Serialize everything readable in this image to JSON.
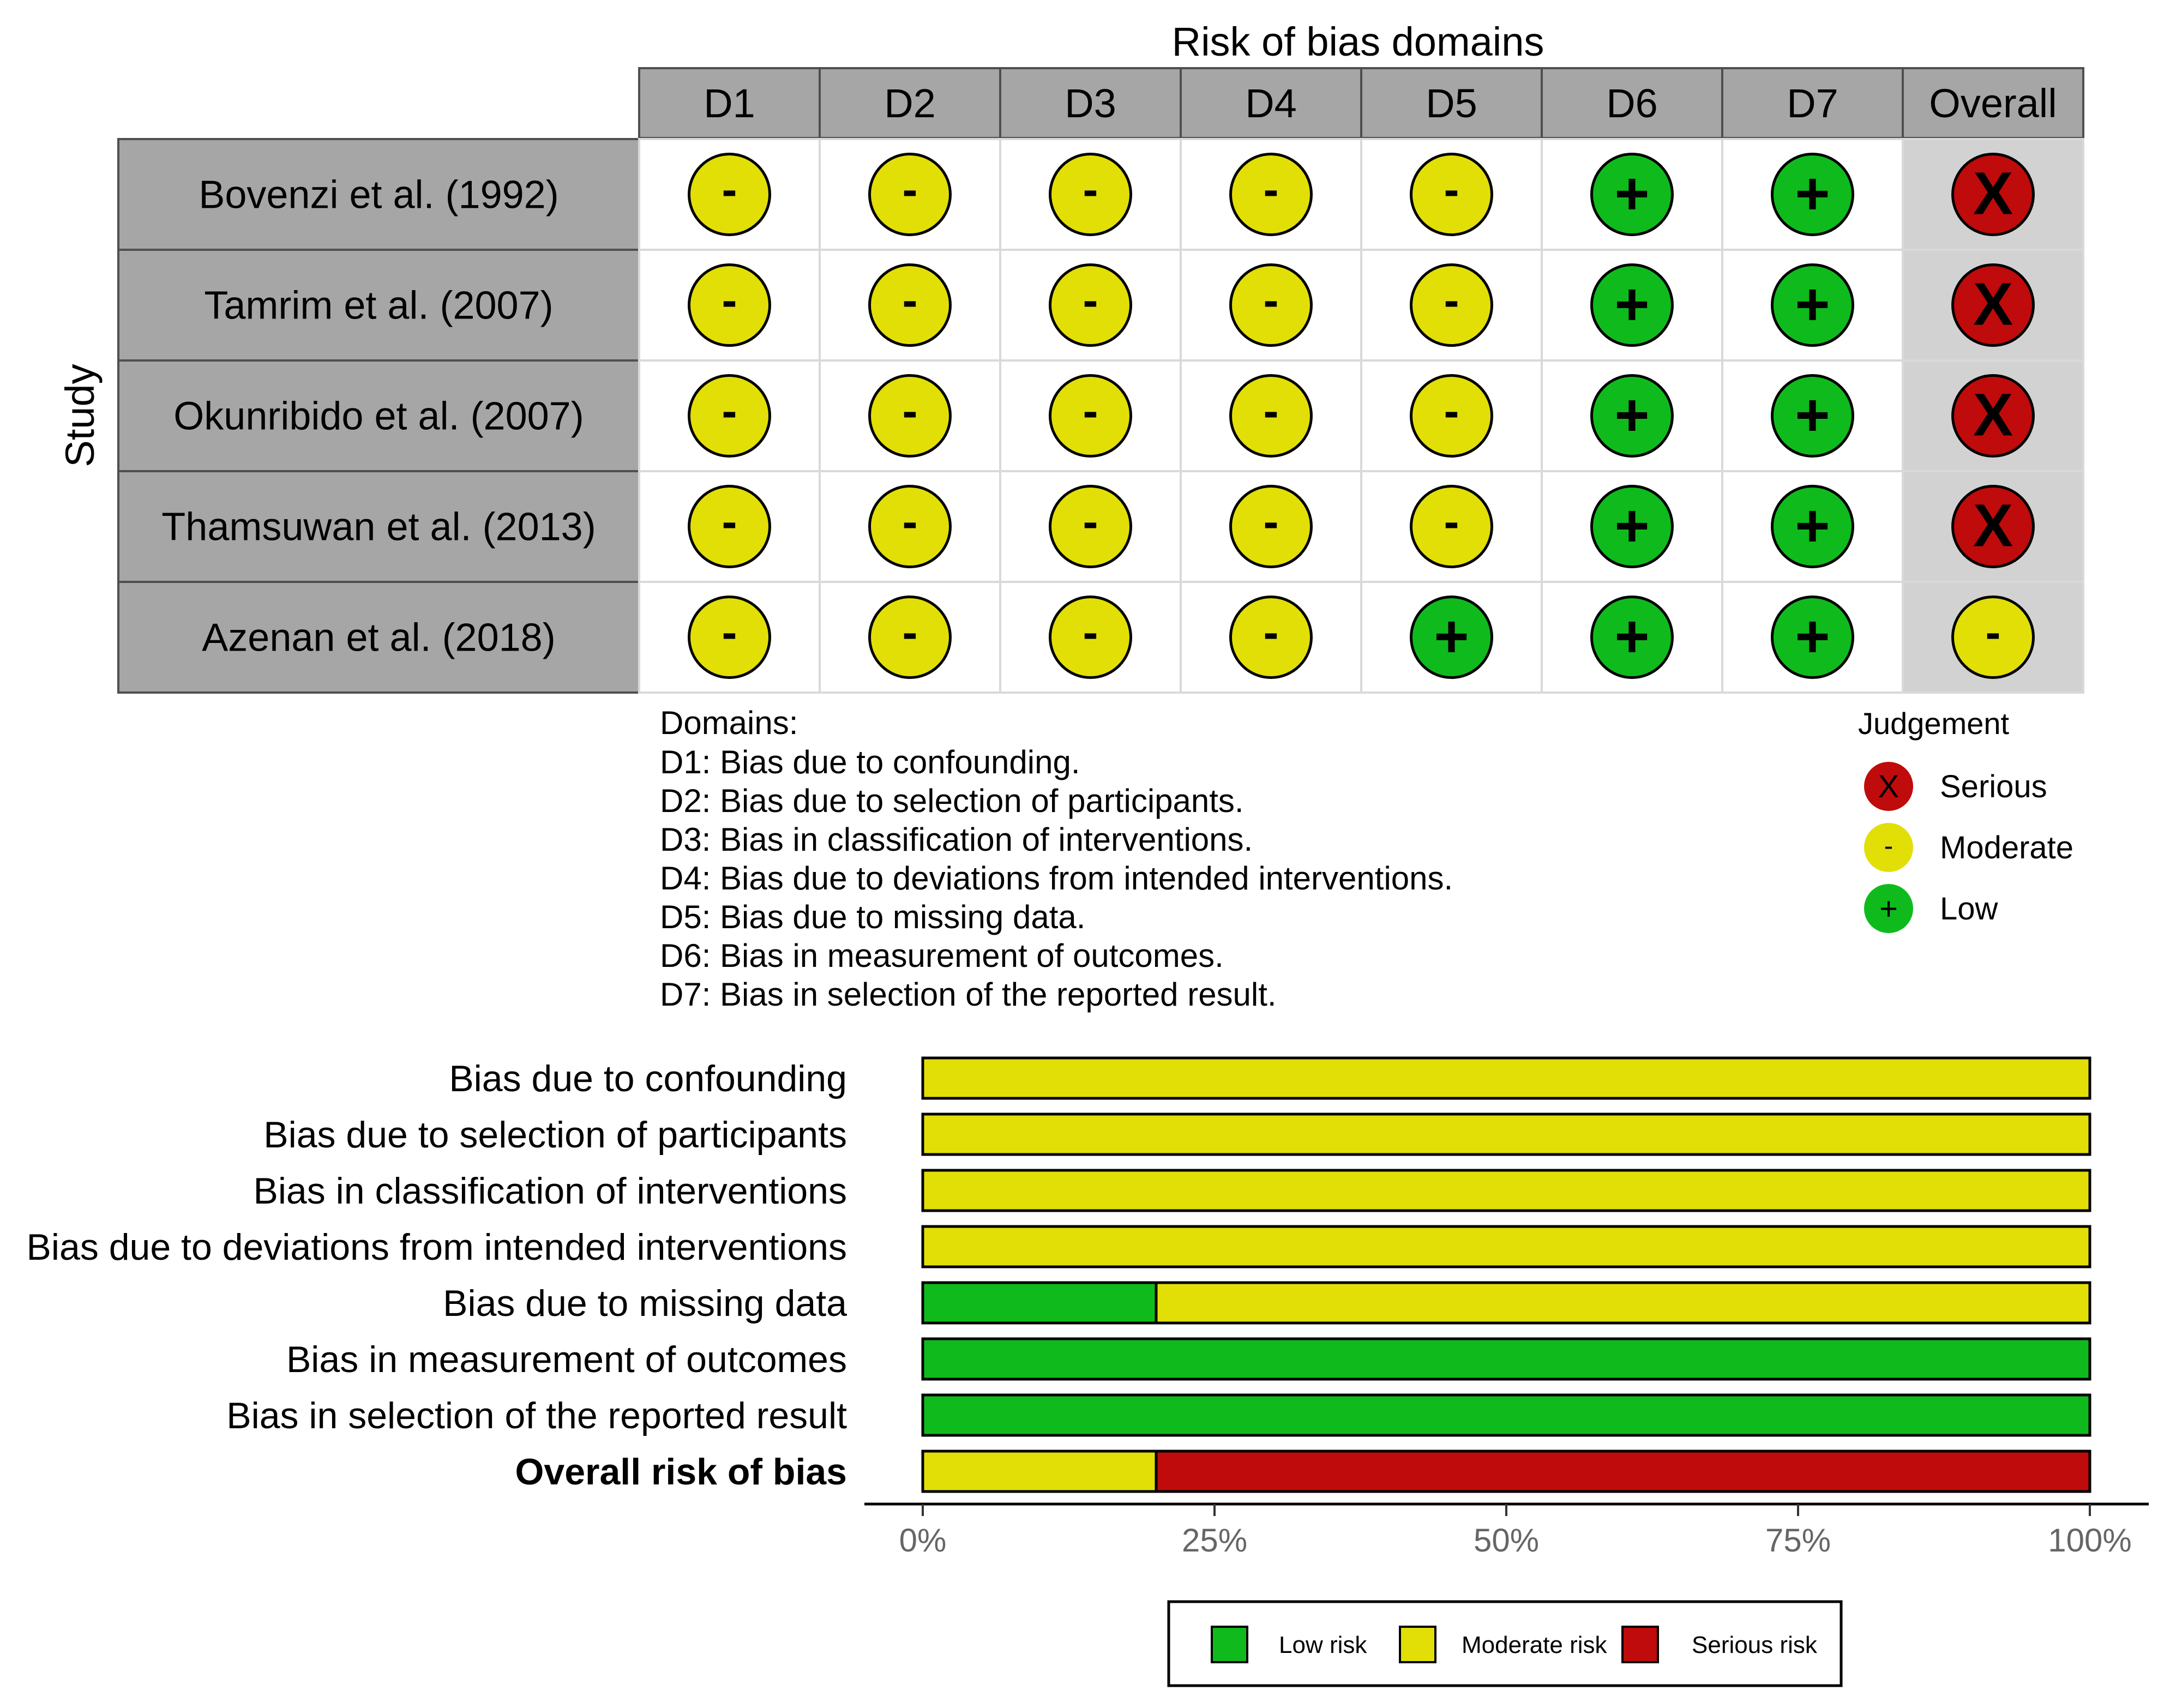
{
  "colors": {
    "low": "#0fbb1c",
    "moderate": "#e2df07",
    "serious": "#bf0b0b",
    "header_fill": "#a6a6a6",
    "study_fill": "#a6a6a6",
    "overall_fill": "#d2d2d2",
    "cell_fill": "#ffffff",
    "grid_line": "#d9d9d9",
    "border": "#4f4f4f",
    "text": "#000000",
    "tick_text": "#666666"
  },
  "chart_data": [
    {
      "type": "table",
      "title": "Risk of bias domains",
      "ylabel": "Study",
      "columns": [
        "D1",
        "D2",
        "D3",
        "D4",
        "D5",
        "D6",
        "D7",
        "Overall"
      ],
      "rows": [
        {
          "study": "Bovenzi et al. (1992)",
          "judgements": [
            "-",
            "-",
            "-",
            "-",
            "-",
            "+",
            "+",
            "X"
          ]
        },
        {
          "study": "Tamrim et al. (2007)",
          "judgements": [
            "-",
            "-",
            "-",
            "-",
            "-",
            "+",
            "+",
            "X"
          ]
        },
        {
          "study": "Okunribido et al. (2007)",
          "judgements": [
            "-",
            "-",
            "-",
            "-",
            "-",
            "+",
            "+",
            "X"
          ]
        },
        {
          "study": "Thamsuwan et al. (2013)",
          "judgements": [
            "-",
            "-",
            "-",
            "-",
            "-",
            "+",
            "+",
            "X"
          ]
        },
        {
          "study": "Azenan et al. (2018)",
          "judgements": [
            "-",
            "-",
            "-",
            "-",
            "+",
            "+",
            "+",
            "-"
          ]
        }
      ],
      "domains_title": "Domains:",
      "domains": [
        "D1: Bias due to confounding.",
        "D2: Bias due to selection of participants.",
        "D3: Bias in classification of interventions.",
        "D4: Bias due to deviations from intended interventions.",
        "D5: Bias due to missing data.",
        "D6: Bias in measurement of outcomes.",
        "D7: Bias in selection of the reported result."
      ],
      "legend_title": "Judgement",
      "legend": [
        {
          "symbol": "X",
          "label": "Serious",
          "level": "serious"
        },
        {
          "symbol": "-",
          "label": "Moderate",
          "level": "moderate"
        },
        {
          "symbol": "+",
          "label": "Low",
          "level": "low"
        }
      ]
    },
    {
      "type": "bar",
      "stacked": true,
      "orientation": "horizontal",
      "categories": [
        "Bias due to confounding",
        "Bias due to selection of participants",
        "Bias in classification of interventions",
        "Bias due to deviations from intended interventions",
        "Bias due to missing data",
        "Bias in measurement of outcomes",
        "Bias in selection of the reported result",
        "Overall risk of bias"
      ],
      "bold_categories": [
        "Overall risk of bias"
      ],
      "series": [
        {
          "name": "Low risk",
          "level": "low",
          "values": [
            0,
            0,
            0,
            0,
            20,
            100,
            100,
            0
          ]
        },
        {
          "name": "Moderate risk",
          "level": "moderate",
          "values": [
            100,
            100,
            100,
            100,
            80,
            0,
            0,
            20
          ]
        },
        {
          "name": "Serious risk",
          "level": "serious",
          "values": [
            0,
            0,
            0,
            0,
            0,
            0,
            0,
            80
          ]
        }
      ],
      "xlim": [
        0,
        100
      ],
      "xticks": [
        0,
        25,
        50,
        75,
        100
      ],
      "xtick_labels": [
        "0%",
        "25%",
        "50%",
        "75%",
        "100%"
      ],
      "legend_position": "bottom"
    }
  ]
}
